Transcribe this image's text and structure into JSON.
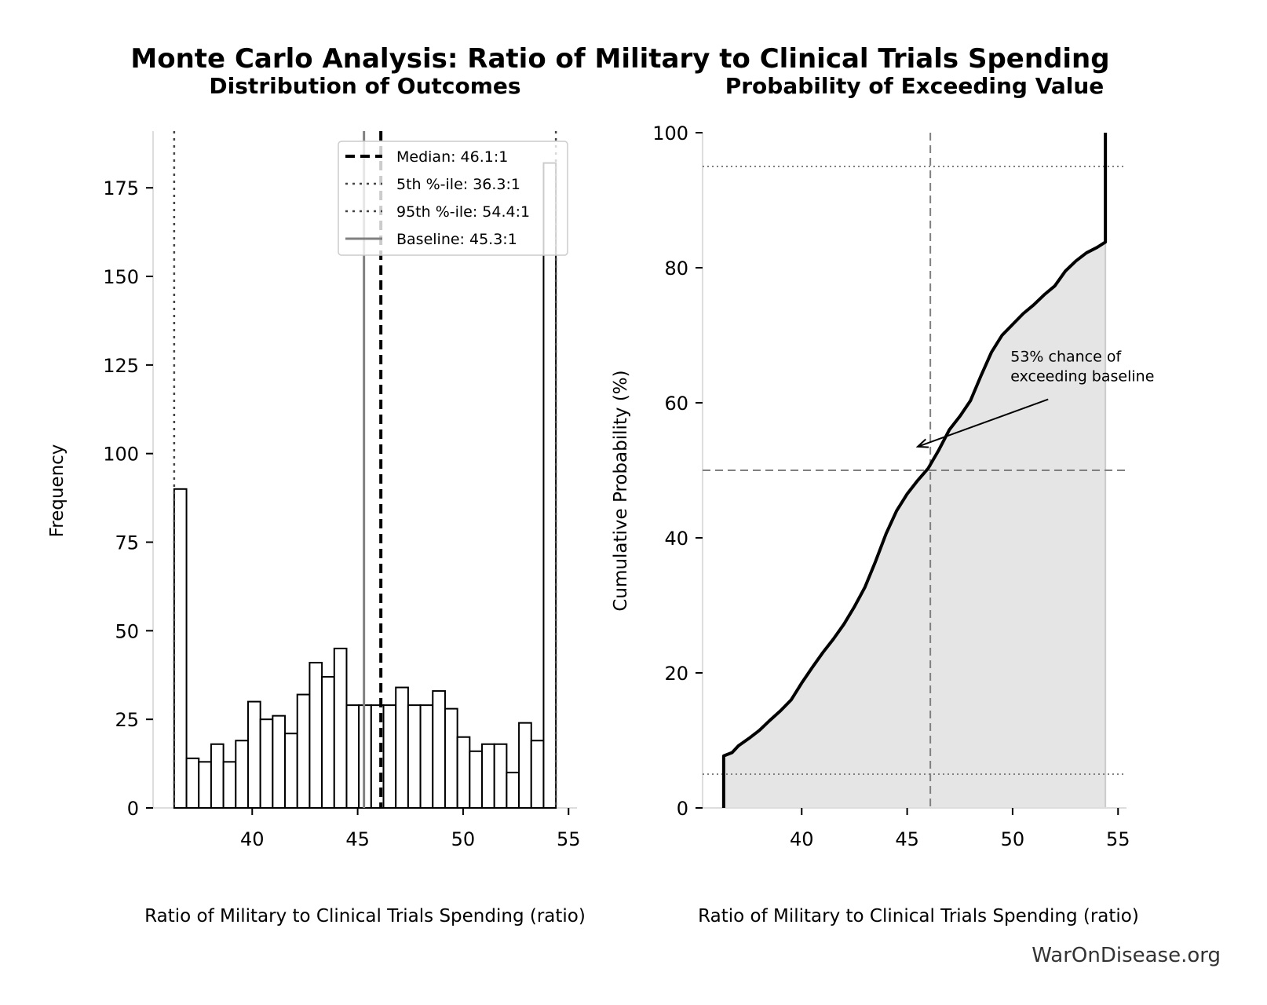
{
  "title": "Monte Carlo Analysis: Ratio of Military to Clinical Trials Spending",
  "watermark": "WarOnDisease.org",
  "colors": {
    "bar_fill": "#ffffff",
    "bar_edge": "#000000",
    "baseline": "#808080",
    "cdf_fill": "#e5e5e5",
    "ref_line": "#808080"
  },
  "chart_data": [
    {
      "type": "bar",
      "title": "Distribution of Outcomes",
      "xlabel": "Ratio of Military to Clinical Trials Spending (ratio)",
      "ylabel": "Frequency",
      "xlim": [
        35.3,
        55.4
      ],
      "ylim": [
        0,
        191
      ],
      "grid": false,
      "bin_start": 36.3,
      "bin_end": 54.4,
      "values": [
        90,
        14,
        13,
        18,
        13,
        19,
        30,
        25,
        26,
        21,
        32,
        41,
        37,
        45,
        29,
        29,
        29,
        29,
        34,
        29,
        29,
        33,
        28,
        20,
        16,
        18,
        18,
        10,
        24,
        19,
        182
      ],
      "xticks": [
        40,
        45,
        50,
        55
      ],
      "yticks": [
        0,
        25,
        50,
        75,
        100,
        125,
        150,
        175
      ],
      "lines": [
        {
          "kind": "median",
          "x": 46.1,
          "style": "dashed",
          "label": "Median: 46.1:1"
        },
        {
          "kind": "p5",
          "x": 36.3,
          "style": "dotted",
          "label": "5th %-ile: 36.3:1"
        },
        {
          "kind": "p95",
          "x": 54.4,
          "style": "dotted",
          "label": "95th %-ile: 54.4:1"
        },
        {
          "kind": "baseline",
          "x": 45.3,
          "style": "solid",
          "label": "Baseline: 45.3:1"
        }
      ],
      "legend_position": "top-right"
    },
    {
      "type": "area",
      "title": "Probability of Exceeding Value",
      "xlabel": "Ratio of Military to Clinical Trials Spending (ratio)",
      "ylabel": "Cumulative Probability (%)",
      "xlim": [
        35.3,
        55.4
      ],
      "ylim": [
        0,
        100
      ],
      "grid": false,
      "xticks": [
        40,
        45,
        50,
        55
      ],
      "yticks": [
        0,
        20,
        40,
        60,
        80,
        100
      ],
      "x": [
        36.3,
        36.3,
        36.7,
        37,
        37.5,
        38,
        38.5,
        39,
        39.5,
        40,
        40.5,
        41,
        41.5,
        42,
        42.5,
        43,
        43.5,
        44,
        44.5,
        45,
        45.5,
        46,
        46.5,
        47,
        47.5,
        48,
        48.5,
        49,
        49.5,
        50,
        50.5,
        51,
        51.5,
        52,
        52.5,
        53,
        53.5,
        54,
        54.4,
        54.4
      ],
      "y": [
        0,
        7.7,
        8.2,
        9.2,
        10.3,
        11.5,
        13,
        14.4,
        16,
        18.5,
        20.8,
        23,
        25,
        27.2,
        29.8,
        32.7,
        36.5,
        40.6,
        44,
        46.5,
        48.5,
        50.3,
        53,
        56,
        58,
        60.3,
        64,
        67.5,
        70,
        71.6,
        73.2,
        74.5,
        76,
        77.3,
        79.5,
        81,
        82.2,
        83,
        83.8,
        100
      ],
      "vlines": [
        {
          "x": 46.1,
          "style": "dashed"
        }
      ],
      "hlines": [
        {
          "y": 50,
          "style": "dashed"
        },
        {
          "y": 95,
          "style": "dotted"
        },
        {
          "y": 5,
          "style": "dotted"
        }
      ],
      "annotation": {
        "line1": "53% chance of",
        "line2": "exceeding baseline",
        "text_at": [
          49.9,
          64
        ],
        "arrow_to": [
          45.5,
          53.5
        ]
      }
    }
  ]
}
